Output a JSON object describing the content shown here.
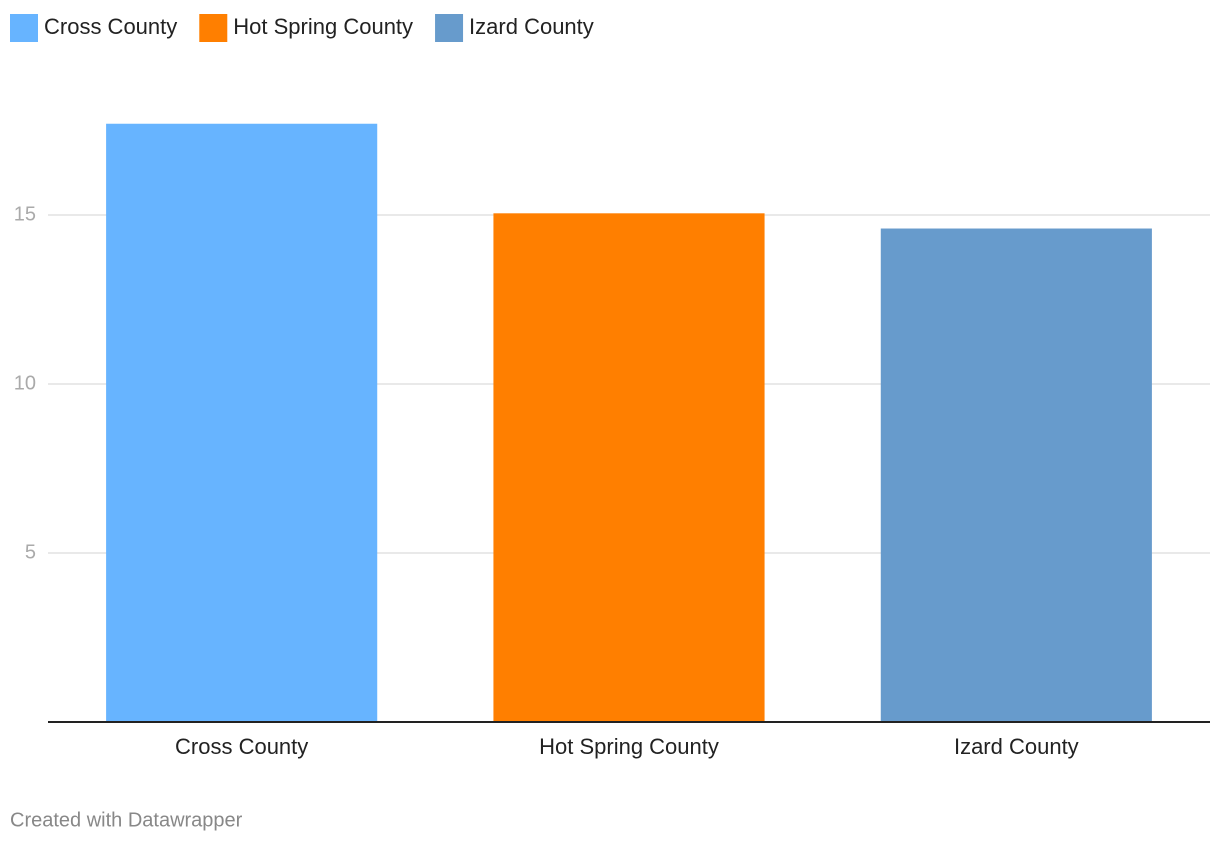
{
  "chart_data": {
    "type": "bar",
    "categories": [
      "Cross County",
      "Hot Spring County",
      "Izard County"
    ],
    "values": [
      17.7,
      15.05,
      14.6
    ],
    "colors": [
      "#67b4ff",
      "#ff7f00",
      "#679bcc"
    ],
    "ylim": [
      0,
      18
    ],
    "yticks": [
      5,
      10,
      15
    ],
    "grid": true,
    "legend": "top-left",
    "credit": "Created with Datawrapper"
  }
}
